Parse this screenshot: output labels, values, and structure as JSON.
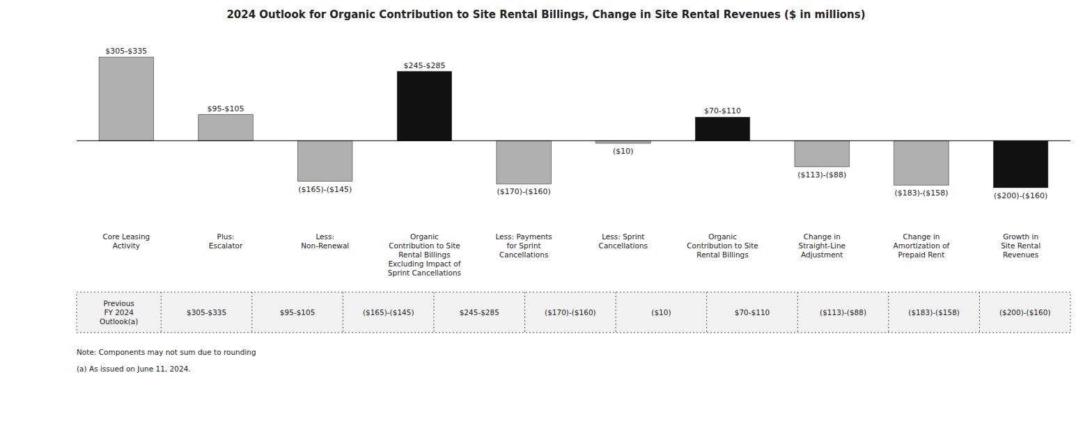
{
  "chart_data": {
    "type": "bar",
    "title": "2024 Outlook for Organic Contribution to Site Rental Billings, Change in Site Rental Revenues ($ in millions)",
    "categories": [
      "Core Leasing\nActivity",
      "Plus:\nEscalator",
      "Less:\nNon-Renewal",
      "Organic\nContribution to Site\nRental Billings\nExcluding Impact of\nSprint Cancellations",
      "Less: Payments\nfor Sprint\nCancellations",
      "Less: Sprint\nCancellations",
      "Organic\nContribution to Site\nRental Billings",
      "Change in\nStraight-Line\nAdjustment",
      "Change in\nAmortization of\nPrepaid Rent",
      "Growth in\nSite Rental\nRevenues"
    ],
    "values": [
      320,
      100,
      -155,
      265,
      -165,
      -10,
      90,
      -100,
      -170,
      -180
    ],
    "value_labels": [
      "$305-$335",
      "$95-$105",
      "($165)-($145)",
      "$245-$285",
      "($170)-($160)",
      "($10)",
      "$70-$110",
      "($113)-($88)",
      "($183)-($158)",
      "($200)-($160)"
    ],
    "colors": [
      "#b0b0b0",
      "#b0b0b0",
      "#b0b0b0",
      "#111111",
      "#b0b0b0",
      "#b0b0b0",
      "#111111",
      "#b0b0b0",
      "#b0b0b0",
      "#111111"
    ],
    "data_labels": true,
    "tick_labels": false,
    "grid": false,
    "ylim": [
      -340,
      400
    ],
    "table_row_label": "Previous\nFY 2024\nOutlook(a)",
    "table_values": [
      "$305-$335",
      "$95-$105",
      "($165)-($145)",
      "$245-$285",
      "($170)-($160)",
      "($10)",
      "$70-$110",
      "($113)-($88)",
      "($183)-($158)",
      "($200)-($160)"
    ],
    "annotations": [
      "Note: Components may not sum due to rounding",
      "(a)   As issued on June 11, 2024."
    ]
  }
}
